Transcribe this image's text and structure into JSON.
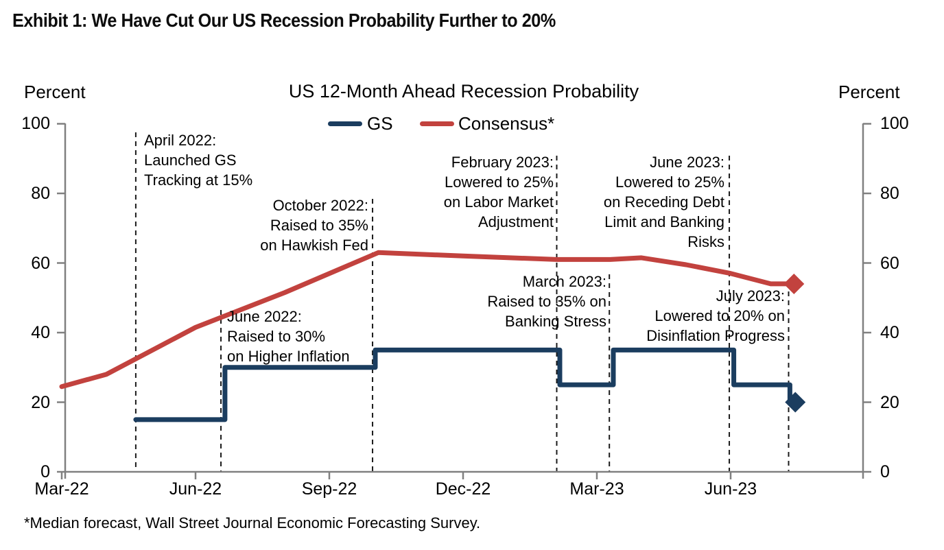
{
  "exhibit_title": "Exhibit 1: We Have Cut Our US Recession Probability Further to 20%",
  "footnote": "*Median forecast, Wall Street Journal Economic Forecasting Survey.",
  "colors": {
    "gs_navy": "#1B3D5F",
    "consensus_red": "#C2423E",
    "axis_gray": "#808080",
    "dashed_line": "#1a1a1a"
  },
  "chart_data": {
    "type": "line",
    "title": "US 12-Month Ahead Recession Probability",
    "ylabel_left": "Percent",
    "ylabel_right": "Percent",
    "ylim": [
      0,
      100
    ],
    "grid": "off",
    "legend_position": "top-center",
    "y_ticks": [
      0,
      20,
      40,
      60,
      80,
      100
    ],
    "y_tick_labels": [
      "100",
      "80",
      "60",
      "40",
      "20",
      "0"
    ],
    "x_tick_labels": [
      "Mar-22",
      "Jun-22",
      "Sep-22",
      "Dec-22",
      "Mar-23",
      "Jun-23"
    ],
    "x_tick_months": [
      0,
      3,
      6,
      9,
      12,
      15
    ],
    "legend": [
      {
        "label": "GS",
        "color": "#1B3D5F"
      },
      {
        "label": "Consensus*",
        "color": "#C2423E"
      }
    ],
    "series": [
      {
        "name": "GS",
        "style": "step",
        "color": "#1B3D5F",
        "end_marker": "diamond",
        "points_month_value": [
          [
            1.66,
            15
          ],
          [
            3.66,
            15
          ],
          [
            3.66,
            30
          ],
          [
            7.03,
            30
          ],
          [
            7.03,
            35
          ],
          [
            11.17,
            35
          ],
          [
            11.17,
            25
          ],
          [
            12.37,
            25
          ],
          [
            12.37,
            35
          ],
          [
            15.07,
            35
          ],
          [
            15.07,
            25
          ],
          [
            16.33,
            25
          ],
          [
            16.33,
            20
          ],
          [
            16.45,
            20
          ]
        ]
      },
      {
        "name": "Consensus*",
        "style": "line",
        "color": "#C2423E",
        "end_marker": "diamond",
        "points_month_value": [
          [
            0,
            24.5
          ],
          [
            1,
            28
          ],
          [
            3,
            41.5
          ],
          [
            5,
            51.5
          ],
          [
            7.1,
            63
          ],
          [
            9,
            62
          ],
          [
            11.1,
            61
          ],
          [
            12.3,
            61
          ],
          [
            13,
            61.5
          ],
          [
            14,
            59.5
          ],
          [
            15,
            57
          ],
          [
            15.9,
            54
          ],
          [
            16.42,
            54
          ]
        ]
      }
    ],
    "annotations": [
      {
        "id": "april-2022",
        "month": 1.66,
        "text": "April 2022:\nLaunched GS\nTracking at 15%"
      },
      {
        "id": "june-2022",
        "month": 3.57,
        "text": "June 2022:\nRaised to 30%\non Higher Inflation"
      },
      {
        "id": "october-2022",
        "month": 6.97,
        "text": "October 2022:\nRaised to 35%\non Hawkish Fed"
      },
      {
        "id": "february-2023",
        "month": 11.1,
        "text": "February 2023:\nLowered to 25%\non Labor Market\nAdjustment"
      },
      {
        "id": "march-2023",
        "month": 12.28,
        "text": "March 2023:\nRaised to 35% on\nBanking Stress"
      },
      {
        "id": "june-2023",
        "month": 14.97,
        "text": "June 2023:\nLowered to 25%\non Receding Debt\nLimit and Banking\nRisks"
      },
      {
        "id": "july-2023",
        "month": 16.3,
        "text": "July 2023:\nLowered to 20% on\nDisinflation Progress"
      }
    ]
  }
}
